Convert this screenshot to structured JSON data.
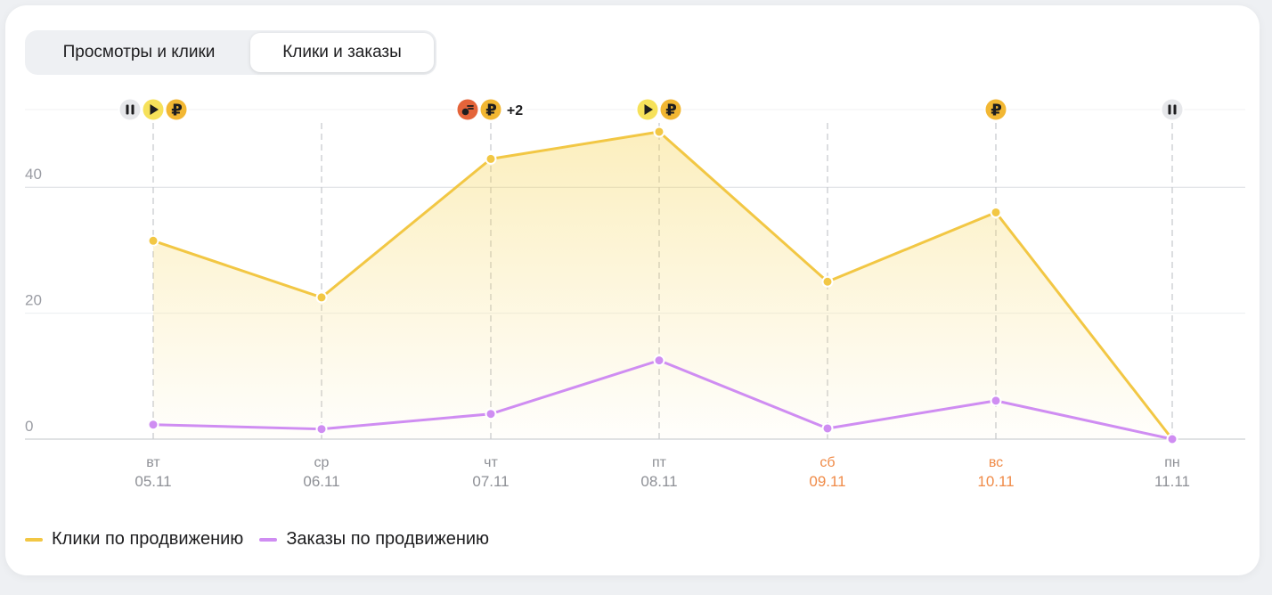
{
  "tabs": [
    {
      "label": "Просмотры и клики",
      "active": false
    },
    {
      "label": "Клики и заказы",
      "active": true
    }
  ],
  "colors": {
    "clicks": "#f2c744",
    "orders": "#cf8df2",
    "weekend": "#f08b48",
    "event_orange": "#e4643a"
  },
  "chart_data": {
    "type": "line",
    "x": [
      {
        "day": "вт",
        "date": "05.11",
        "weekend": false
      },
      {
        "day": "ср",
        "date": "06.11",
        "weekend": false
      },
      {
        "day": "чт",
        "date": "07.11",
        "weekend": false
      },
      {
        "day": "пт",
        "date": "08.11",
        "weekend": false
      },
      {
        "day": "сб",
        "date": "09.11",
        "weekend": true
      },
      {
        "day": "вс",
        "date": "10.11",
        "weekend": true
      },
      {
        "day": "пн",
        "date": "11.11",
        "weekend": false
      }
    ],
    "series": [
      {
        "name": "Клики по продвижению",
        "color": "#f2c744",
        "area": true,
        "values": [
          31.5,
          22.5,
          44.5,
          48.8,
          25,
          36,
          0
        ]
      },
      {
        "name": "Заказы по продвижению",
        "color": "#cf8df2",
        "area": false,
        "values": [
          2.3,
          1.6,
          4,
          12.5,
          1.7,
          6.1,
          0
        ]
      }
    ],
    "yticks": [
      "0",
      "20",
      "40"
    ],
    "ylim": [
      0,
      52.5
    ],
    "grid": true,
    "legend_position": "bottom-left",
    "event_markers": [
      {
        "index": 0,
        "icons": [
          "pause-icon",
          "play-icon",
          "ruble-icon"
        ]
      },
      {
        "index": 2,
        "icons": [
          "promo-icon",
          "ruble-icon"
        ],
        "more": "+2"
      },
      {
        "index": 3,
        "icons": [
          "play-icon",
          "ruble-icon"
        ]
      },
      {
        "index": 5,
        "icons": [
          "ruble-icon"
        ]
      },
      {
        "index": 6,
        "icons": [
          "pause-icon"
        ]
      }
    ]
  }
}
